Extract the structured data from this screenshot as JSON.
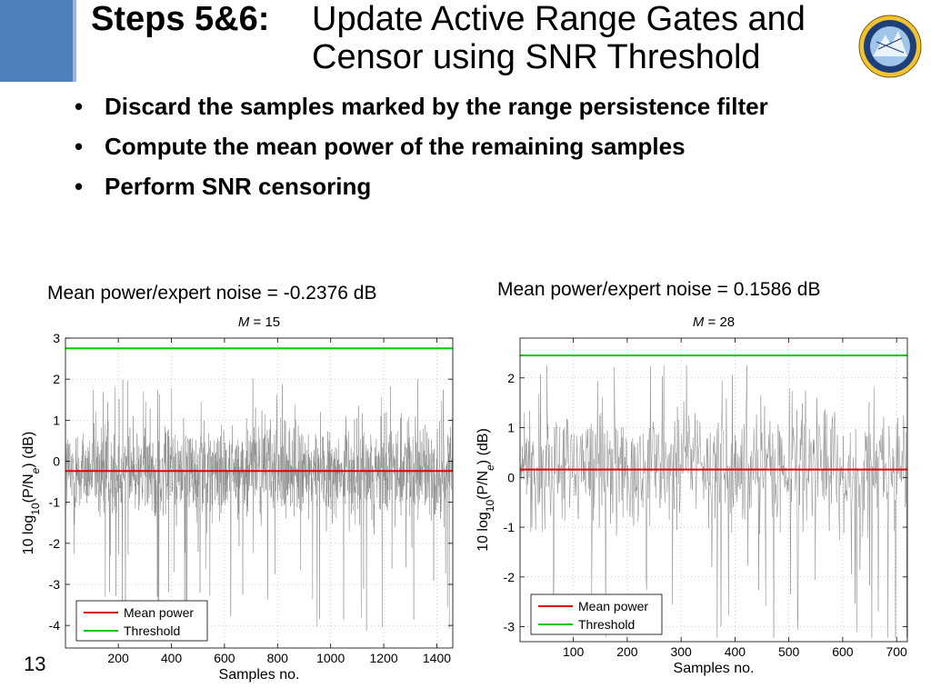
{
  "slide": {
    "title_lead": "Steps 5&6:",
    "title_main": "Update Active Range Gates and Censor using SNR Threshold",
    "bullets": [
      "Discard the samples marked by the range persistence filter",
      "Compute the mean power of the remaining samples",
      "Perform SNR censoring"
    ],
    "page_number": "13",
    "logo_icon": "nssl-seal-icon"
  },
  "colors": {
    "mean_power": "#e00000",
    "threshold": "#00cc00",
    "samples": "#8a8a8a",
    "accent": "#4f81bd"
  },
  "chart_data": [
    {
      "type": "line",
      "caption": "Mean power/expert noise = -0.2376 dB",
      "title_prefix": "M",
      "title_suffix": " = 15",
      "xlabel": "Samples no.",
      "ylabel_parts": [
        "10 log",
        "10",
        "(P/N",
        "e",
        ") (dB)"
      ],
      "xlim": [
        1,
        1460
      ],
      "ylim": [
        -4.55,
        3
      ],
      "xticks": [
        200,
        400,
        600,
        800,
        1000,
        1200,
        1400
      ],
      "yticks": [
        -4,
        -3,
        -2,
        -1,
        0,
        1,
        2,
        3
      ],
      "num_samples": 1460,
      "series": [
        {
          "name": "Mean power",
          "value": -0.2376
        },
        {
          "name": "Threshold",
          "value": 2.75
        }
      ],
      "legend": "bottom-left",
      "grid": "dotted"
    },
    {
      "type": "line",
      "caption": "Mean power/expert noise = 0.1586 dB",
      "title_prefix": "M",
      "title_suffix": " = 28",
      "xlabel": "Samples no.",
      "ylabel_parts": [
        "10 log",
        "10",
        "(P/N",
        "e",
        ") (dB)"
      ],
      "xlim": [
        1,
        720
      ],
      "ylim": [
        -3.3,
        2.8
      ],
      "xticks": [
        100,
        200,
        300,
        400,
        500,
        600,
        700
      ],
      "yticks": [
        -3,
        -2,
        -1,
        0,
        1,
        2
      ],
      "num_samples": 720,
      "series": [
        {
          "name": "Mean power",
          "value": 0.1586
        },
        {
          "name": "Threshold",
          "value": 2.45
        }
      ],
      "legend": "bottom-left",
      "grid": "dotted"
    }
  ]
}
